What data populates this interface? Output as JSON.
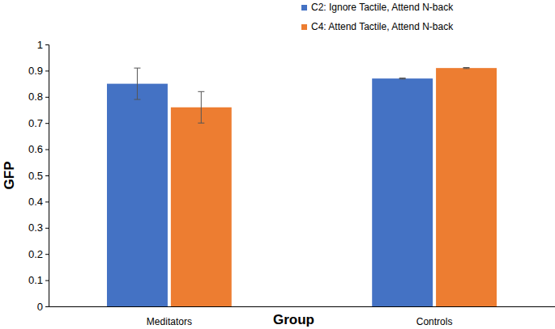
{
  "chart_data": {
    "type": "bar",
    "categories": [
      "Meditators",
      "Controls"
    ],
    "series": [
      {
        "name": "C2: Ignore Tactile, Attend N-back",
        "color": "#4472c4",
        "values": [
          0.85,
          0.87
        ],
        "errors": [
          0.06,
          0.002
        ]
      },
      {
        "name": "C4: Attend Tactile, Attend N-back",
        "color": "#ed7d31",
        "values": [
          0.76,
          0.91
        ],
        "errors": [
          0.06,
          0.002
        ]
      }
    ],
    "x_label": "Group",
    "y_label": "GFP",
    "ylim": [
      0,
      1
    ],
    "yticks": [
      0,
      0.1,
      0.2,
      0.3,
      0.4,
      0.5,
      0.6,
      0.7,
      0.8,
      0.9,
      1
    ],
    "grid": false,
    "legend": "top-right"
  }
}
